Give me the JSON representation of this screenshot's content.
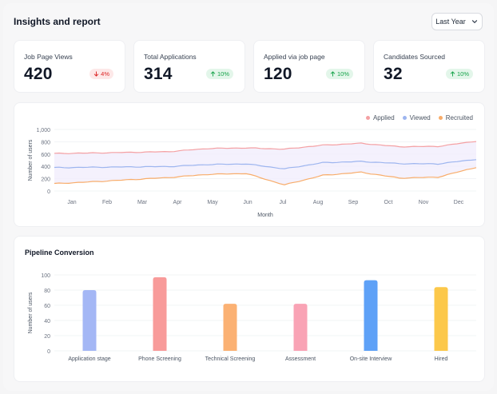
{
  "header": {
    "title": "Insights and report",
    "period": "Last Year"
  },
  "kpis": [
    {
      "label": "Job Page Views",
      "value": "420",
      "change": "4%",
      "direction": "down"
    },
    {
      "label": "Total Applications",
      "value": "314",
      "change": "10%",
      "direction": "up"
    },
    {
      "label": "Applied via job page",
      "value": "120",
      "change": "10%",
      "direction": "up"
    },
    {
      "label": "Candidates Sourced",
      "value": "32",
      "change": "10%",
      "direction": "up"
    }
  ],
  "colors": {
    "applied": "#f4a0a3",
    "viewed": "#9db5ef",
    "recruited": "#f8ac6a",
    "band": "#f1eefd"
  },
  "chart_data": [
    {
      "type": "line",
      "title": "",
      "xlabel": "Month",
      "ylabel": "Number of users",
      "ylim": [
        0,
        1000
      ],
      "yticks": [
        "0",
        "200",
        "400",
        "600",
        "800",
        "1,000"
      ],
      "categories": [
        "Jan",
        "Feb",
        "Mar",
        "Apr",
        "May",
        "Jun",
        "Jul",
        "Aug",
        "Sep",
        "Oct",
        "Nov",
        "Dec"
      ],
      "legend_position": "top-right",
      "grid": true,
      "series": [
        {
          "name": "Applied",
          "color": "#f4a0a3",
          "values": [
            610,
            618,
            628,
            640,
            690,
            700,
            680,
            745,
            775,
            720,
            725,
            810
          ]
        },
        {
          "name": "Viewed",
          "color": "#9db5ef",
          "values": [
            380,
            386,
            392,
            398,
            430,
            440,
            360,
            460,
            480,
            445,
            440,
            515
          ]
        },
        {
          "name": "Recruited",
          "color": "#f8ac6a",
          "values": [
            120,
            150,
            185,
            220,
            270,
            285,
            100,
            255,
            305,
            210,
            225,
            385
          ]
        }
      ]
    },
    {
      "type": "bar",
      "title": "Pipeline Conversion",
      "xlabel": "",
      "ylabel": "Number of users",
      "ylim": [
        0,
        100
      ],
      "yticks": [
        "0",
        "20",
        "40",
        "60",
        "80",
        "100"
      ],
      "grid": true,
      "categories": [
        "Application stage",
        "Phone Screening",
        "Technical Screening",
        "Assessment",
        "On-site Interview",
        "Hired"
      ],
      "values": [
        80,
        97,
        62,
        62,
        93,
        84
      ],
      "colors": [
        "#a4b7f5",
        "#f89b9a",
        "#fbb173",
        "#f9a3b5",
        "#5ea1f7",
        "#fcc84a"
      ]
    }
  ]
}
